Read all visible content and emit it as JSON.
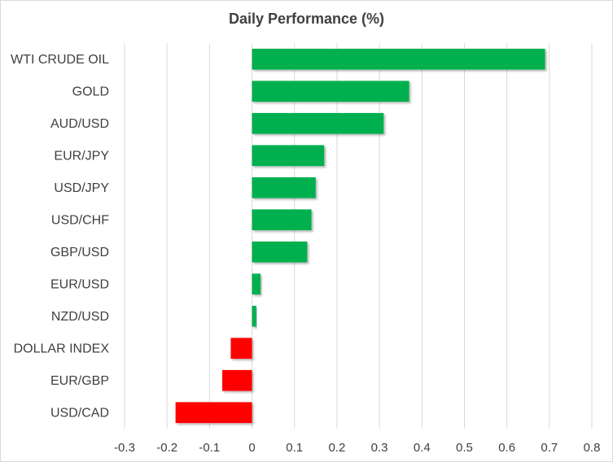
{
  "chart_data": {
    "type": "bar",
    "orientation": "horizontal",
    "title": "Daily Performance (%)",
    "xlabel": "",
    "ylabel": "",
    "categories": [
      "WTI CRUDE OIL",
      "GOLD",
      "AUD/USD",
      "EUR/JPY",
      "USD/JPY",
      "USD/CHF",
      "GBP/USD",
      "EUR/USD",
      "NZD/USD",
      "DOLLAR INDEX",
      "EUR/GBP",
      "USD/CAD"
    ],
    "values": [
      0.69,
      0.37,
      0.31,
      0.17,
      0.15,
      0.14,
      0.13,
      0.02,
      0.01,
      -0.05,
      -0.07,
      -0.18
    ],
    "xlim": [
      -0.3,
      0.8
    ],
    "xticks": [
      "-0.3",
      "-0.2",
      "-0.1",
      "0",
      "0.1",
      "0.2",
      "0.3",
      "0.4",
      "0.5",
      "0.6",
      "0.7",
      "0.8"
    ],
    "grid": "vertical",
    "legend": "none",
    "colors": {
      "positive": "#00b050",
      "negative": "#ff0000",
      "grid": "#d9d9d9",
      "text": "#404040"
    }
  }
}
